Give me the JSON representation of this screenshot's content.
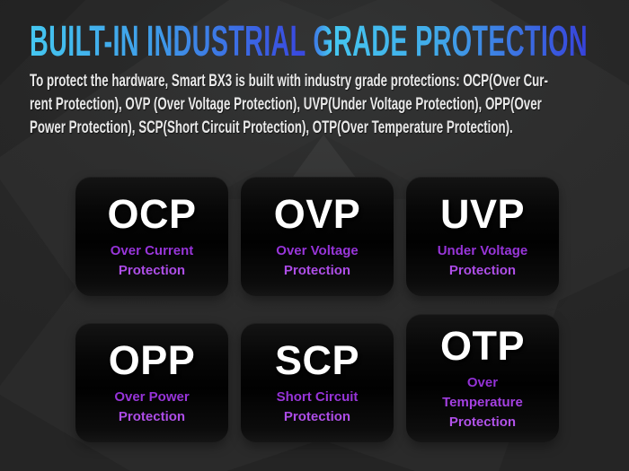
{
  "page": {
    "title": "BUILT-IN INDUSTRIAL GRADE PROTECTION",
    "intro_lines": [
      "To protect the hardware, Smart BX3 is built with industry grade protections: OCP(Over Cur-",
      "rent Protection), OVP (Over Voltage Protection), UVP(Under Voltage Protection), OPP(Over",
      "Power Protection), SCP(Short Circuit Protection), OTP(Over Temperature Protection)."
    ]
  },
  "cards": [
    {
      "acronym": "OCP",
      "name": "Over Current Protection"
    },
    {
      "acronym": "OVP",
      "name": "Over Voltage Protection"
    },
    {
      "acronym": "UVP",
      "name": "Under Voltage Protection"
    },
    {
      "acronym": "OPP",
      "name": "Over Power Protection"
    },
    {
      "acronym": "SCP",
      "name": "Short Circuit Protection"
    },
    {
      "acronym": "OTP",
      "name": "Over Temperature Protection"
    }
  ],
  "colors": {
    "background": "#2E2E2E",
    "card_background": "#050505",
    "title_gradient_start": "#45C7F0",
    "title_gradient_end": "#3742DB",
    "intro_text": "#E8E8E8",
    "acronym_text": "#FFFFFF",
    "subtitle_purple": "#A43FE2"
  }
}
